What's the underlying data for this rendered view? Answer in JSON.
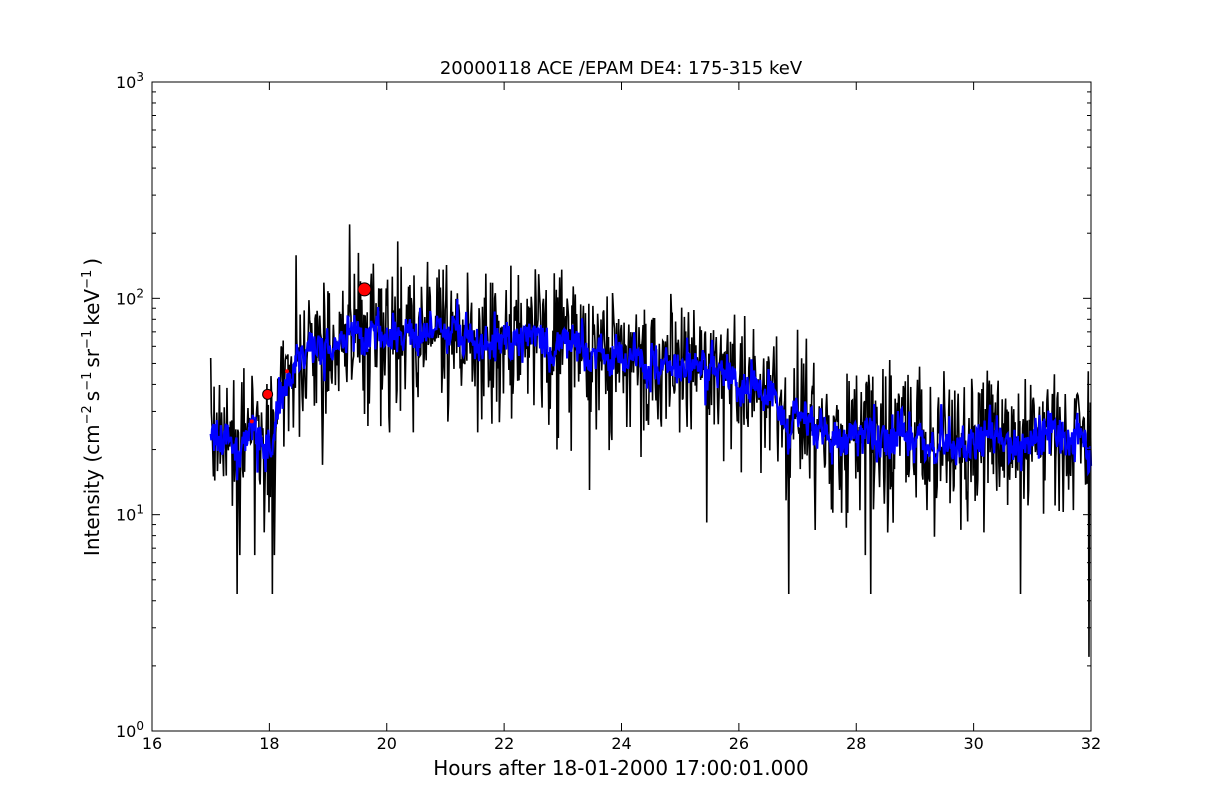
{
  "chart_data": {
    "type": "line",
    "title": "20000118 ACE /EPAM DE4: 175-315 keV",
    "xlabel": "Hours after 18-01-2000 17:00:01.000",
    "ylabel_prefix": "Intensity (cm",
    "ylabel_exp1": "−2",
    "ylabel_mid1": "s",
    "ylabel_exp2": "−1",
    "ylabel_mid2": "sr",
    "ylabel_exp3": "−1",
    "ylabel_mid3": "keV",
    "ylabel_exp4": "−1",
    "ylabel_suffix": ")",
    "xlim": [
      16,
      32
    ],
    "ylim": [
      1,
      1000
    ],
    "yscale": "log",
    "grid": false,
    "x_ticks": [
      {
        "value": 16,
        "label": "16"
      },
      {
        "value": 18,
        "label": "18"
      },
      {
        "value": 20,
        "label": "20"
      },
      {
        "value": 22,
        "label": "22"
      },
      {
        "value": 24,
        "label": "24"
      },
      {
        "value": 26,
        "label": "26"
      },
      {
        "value": 28,
        "label": "28"
      },
      {
        "value": 30,
        "label": "30"
      },
      {
        "value": 32,
        "label": "32"
      }
    ],
    "y_ticks": [
      {
        "value": 1,
        "base": "10",
        "exp": "0"
      },
      {
        "value": 10,
        "base": "10",
        "exp": "1"
      },
      {
        "value": 100,
        "base": "10",
        "exp": "2"
      },
      {
        "value": 1000,
        "base": "10",
        "exp": "3"
      }
    ],
    "series": [
      {
        "kind": "raw",
        "color": "#000000",
        "x_start": 17.0,
        "x_end": 32.0,
        "envelope": [
          [
            17.0,
            24
          ],
          [
            17.5,
            22
          ],
          [
            18.0,
            24
          ],
          [
            18.5,
            52
          ],
          [
            19.0,
            65
          ],
          [
            19.5,
            70
          ],
          [
            20.0,
            70
          ],
          [
            20.5,
            72
          ],
          [
            21.0,
            72
          ],
          [
            21.5,
            68
          ],
          [
            22.0,
            66
          ],
          [
            22.5,
            62
          ],
          [
            23.0,
            60
          ],
          [
            23.5,
            58
          ],
          [
            24.0,
            52
          ],
          [
            24.5,
            50
          ],
          [
            25.0,
            48
          ],
          [
            25.5,
            46
          ],
          [
            26.0,
            44
          ],
          [
            26.5,
            34
          ],
          [
            27.0,
            28
          ],
          [
            27.5,
            24
          ],
          [
            28.0,
            23
          ],
          [
            28.5,
            23
          ],
          [
            29.0,
            22
          ],
          [
            29.5,
            22
          ],
          [
            30.0,
            22
          ],
          [
            30.5,
            22
          ],
          [
            31.0,
            23
          ],
          [
            31.5,
            24
          ],
          [
            32.0,
            22
          ]
        ],
        "spikes": [
          [
            17.45,
            4.3
          ],
          [
            18.05,
            4.3
          ],
          [
            26.85,
            4.3
          ],
          [
            28.25,
            4.3
          ],
          [
            30.8,
            4.3
          ],
          [
            31.97,
            2.2
          ],
          [
            17.0,
            10.8
          ],
          [
            17.5,
            6.5
          ],
          [
            17.75,
            6.5
          ],
          [
            18.08,
            6.5
          ],
          [
            18.9,
            17
          ],
          [
            20.05,
            24
          ],
          [
            20.45,
            24
          ],
          [
            21.55,
            24
          ],
          [
            22.9,
            20
          ],
          [
            23.45,
            13
          ],
          [
            25.45,
            9.2
          ],
          [
            27.3,
            8.5
          ],
          [
            27.75,
            10.2
          ],
          [
            28.15,
            6.5
          ],
          [
            29.2,
            10.5
          ],
          [
            29.9,
            9.3
          ],
          [
            30.25,
            14
          ],
          [
            31.7,
            10.5
          ],
          [
            20.25,
            140
          ],
          [
            22.95,
            125
          ],
          [
            17.0,
            53
          ],
          [
            19.55,
            120
          ],
          [
            18.2,
            60
          ],
          [
            21.8,
            118
          ],
          [
            23.7,
            88
          ],
          [
            25.2,
            66
          ],
          [
            27.1,
            50
          ],
          [
            28.0,
            44
          ],
          [
            30.3,
            40
          ],
          [
            31.95,
            46
          ],
          [
            26.6,
            60
          ]
        ],
        "seed": 20000118
      },
      {
        "kind": "smoothed",
        "color": "#0000ff",
        "x_start": 17.0,
        "x_end": 32.0,
        "seed": 18012000
      }
    ],
    "markers": [
      {
        "x": 19.62,
        "y": 110,
        "shape": "circle",
        "color": "#ff0000",
        "size": "large"
      },
      {
        "x": 17.97,
        "y": 36,
        "shape": "circle",
        "color": "#ff0000",
        "size": "medium"
      },
      {
        "x": 18.3,
        "y": 46,
        "shape": "circle",
        "color": "#ff0000",
        "size": "tiny"
      },
      {
        "x": 17.7,
        "y": 27,
        "shape": "circle",
        "color": "#ff0000",
        "size": "tiny"
      }
    ]
  }
}
